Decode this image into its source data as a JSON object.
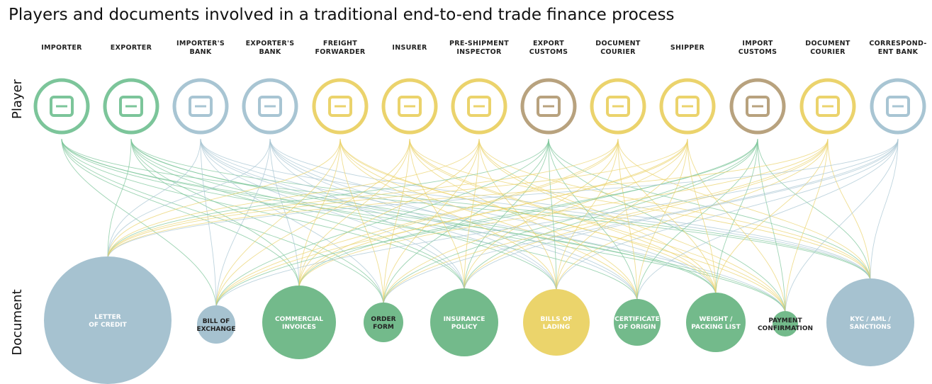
{
  "title": "Players and documents involved in a traditional end-to-end trade finance process",
  "player_axis_label": "Player",
  "document_axis_label": "Document",
  "players": [
    {
      "label": "IMPORTER",
      "color": "#7cc59a"
    },
    {
      "label": "EXPORTER",
      "color": "#7cc59a"
    },
    {
      "label": "IMPORTER'S\nBANK",
      "color": "#a8c5d3"
    },
    {
      "label": "EXPORTER'S\nBANK",
      "color": "#a8c5d3"
    },
    {
      "label": "FREIGHT\nFORWARDER",
      "color": "#ebd36c"
    },
    {
      "label": "INSURER",
      "color": "#ebd36c"
    },
    {
      "label": "PRE-SHIPMENT\nINSPECTOR",
      "color": "#ebd36c"
    },
    {
      "label": "EXPORT\nCUSTOMS",
      "color": "#b8a27e"
    },
    {
      "label": "DOCUMENT\nCOURIER",
      "color": "#ebd36c"
    },
    {
      "label": "SHIPPER",
      "color": "#ebd36c"
    },
    {
      "label": "IMPORT\nCUSTOMS",
      "color": "#b8a27e"
    },
    {
      "label": "DOCUMENT\nCOURIER",
      "color": "#ebd36c"
    },
    {
      "label": "CORRESPOND-\nENT BANK",
      "color": "#a8c5d3"
    }
  ],
  "documents": [
    {
      "label": "LETTER\nOF CREDIT",
      "color": "#a6c2d0"
    },
    {
      "label": "BILL OF\nEXCHANGE",
      "color": "#a6c2d0"
    },
    {
      "label": "COMMERCIAL\nINVOICES",
      "color": "#73ba8b"
    },
    {
      "label": "ORDER\nFORM",
      "color": "#73ba8b"
    },
    {
      "label": "INSURANCE\nPOLICY",
      "color": "#73ba8b"
    },
    {
      "label": "BILLS OF\nLADING",
      "color": "#ebd46b"
    },
    {
      "label": "CERTIFICATE\nOF ORIGIN",
      "color": "#73ba8b"
    },
    {
      "label": "WEIGHT /\nPACKING LIST",
      "color": "#73ba8b"
    },
    {
      "label": "PAYMENT\nCONFIRMATION",
      "color": "#73ba8b"
    },
    {
      "label": "KYC / AML /\nSANCTIONS",
      "color": "#a6c2d0"
    }
  ]
}
